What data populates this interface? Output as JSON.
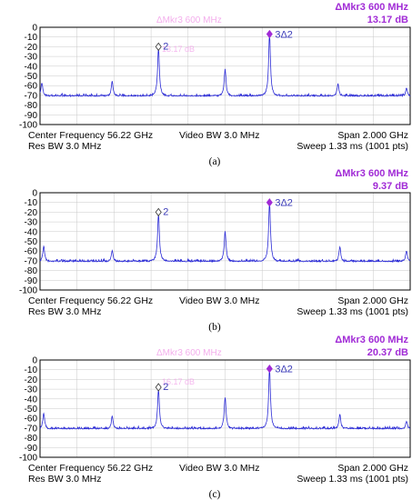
{
  "colors": {
    "trace": "#2b2bd6",
    "marker": "#a12bd6",
    "ghost": "#f19ae8",
    "grid": "#c8c8c8",
    "axis": "#000000"
  },
  "chart_data": [
    {
      "type": "line",
      "caption": "(a)",
      "marker_header": "ΔMkr3  600 MHz",
      "marker_value": "13.17 dB",
      "ghost_header": "ΔMkr3  600 MHz",
      "ghost_value": "13.17 dB",
      "ylim": [
        -100,
        0
      ],
      "yticks": [
        "0",
        "-10",
        "-20",
        "-30",
        "-40",
        "-50",
        "-60",
        "-70",
        "-80",
        "-90",
        "-100"
      ],
      "x_span_ghz": [
        -1.0,
        1.0
      ],
      "noise_floor_db": -71,
      "peaks": [
        {
          "x": -0.99,
          "y": -57
        },
        {
          "x": -0.61,
          "y": -56
        },
        {
          "x": -0.36,
          "y": -22
        },
        {
          "x": 0.0,
          "y": -43
        },
        {
          "x": 0.24,
          "y": -7
        },
        {
          "x": 0.61,
          "y": -58
        },
        {
          "x": 0.98,
          "y": -63
        }
      ],
      "markers": [
        {
          "label": "2",
          "x": -0.36,
          "y": -20,
          "shape": "diamond-open"
        },
        {
          "label": "3Δ2",
          "x": 0.24,
          "y": -7,
          "shape": "diamond-filled"
        }
      ],
      "footer": {
        "center": "Center Frequency 56.22 GHz",
        "rbw": "Res BW 3.0 MHz",
        "vbw": "Video BW 3.0 MHz",
        "span": "Span 2.000 GHz",
        "sweep": "Sweep 1.33 ms (1001 pts)"
      }
    },
    {
      "type": "line",
      "caption": "(b)",
      "marker_header": "ΔMkr3  600 MHz",
      "marker_value": "9.37 dB",
      "ylim": [
        -100,
        0
      ],
      "yticks": [
        "0",
        "-10",
        "-20",
        "-30",
        "-40",
        "-50",
        "-60",
        "-70",
        "-80",
        "-90",
        "-100"
      ],
      "x_span_ghz": [
        -1.0,
        1.0
      ],
      "noise_floor_db": -71,
      "peaks": [
        {
          "x": -0.98,
          "y": -55
        },
        {
          "x": -0.61,
          "y": -60
        },
        {
          "x": -0.36,
          "y": -22
        },
        {
          "x": 0.0,
          "y": -40
        },
        {
          "x": 0.24,
          "y": -10
        },
        {
          "x": 0.62,
          "y": -56
        },
        {
          "x": 0.98,
          "y": -60
        }
      ],
      "markers": [
        {
          "label": "2",
          "x": -0.36,
          "y": -20,
          "shape": "diamond-open"
        },
        {
          "label": "3Δ2",
          "x": 0.24,
          "y": -10,
          "shape": "diamond-filled"
        }
      ],
      "footer": {
        "center": "Center Frequency 56.22 GHz",
        "rbw": "Res BW 3.0 MHz",
        "vbw": "Video BW 3.0 MHz",
        "span": "Span 2.000 GHz",
        "sweep": "Sweep 1.33 ms (1001 pts)"
      }
    },
    {
      "type": "line",
      "caption": "(c)",
      "marker_header": "ΔMkr3  600 MHz",
      "marker_value": "20.37 dB",
      "ghost_header": "ΔMkr3  600 MHz",
      "ghost_value": "16.17 dB",
      "ylim": [
        -100,
        0
      ],
      "yticks": [
        "0",
        "-10",
        "-20",
        "-30",
        "-40",
        "-50",
        "-60",
        "-70",
        "-80",
        "-90",
        "-100"
      ],
      "x_span_ghz": [
        -1.0,
        1.0
      ],
      "noise_floor_db": -71,
      "peaks": [
        {
          "x": -0.98,
          "y": -55
        },
        {
          "x": -0.61,
          "y": -58
        },
        {
          "x": -0.36,
          "y": -30
        },
        {
          "x": 0.0,
          "y": -38
        },
        {
          "x": 0.24,
          "y": -9
        },
        {
          "x": 0.62,
          "y": -56
        },
        {
          "x": 0.98,
          "y": -63
        }
      ],
      "markers": [
        {
          "label": "2",
          "x": -0.36,
          "y": -28,
          "shape": "diamond-open"
        },
        {
          "label": "3Δ2",
          "x": 0.24,
          "y": -9,
          "shape": "diamond-filled"
        }
      ],
      "footer": {
        "center": "Center Frequency 56.22 GHz",
        "rbw": "Res BW 3.0 MHz",
        "vbw": "Video BW 3.0 MHz",
        "span": "Span 2.000 GHz",
        "sweep": "Sweep 1.33 ms (1001 pts)"
      }
    }
  ]
}
